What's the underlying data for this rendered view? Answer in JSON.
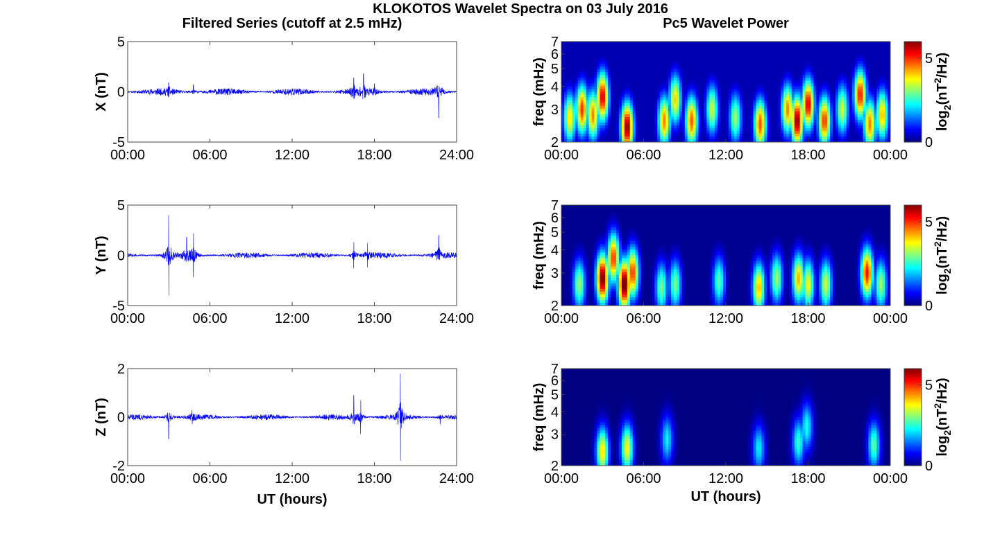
{
  "figure": {
    "title": "KLOKOTOS Wavelet Spectra on 03 July 2016",
    "left_title": "Filtered Series (cutoff at 2.5 mHz)",
    "right_title": "Pc5 Wavelet Power",
    "xlabel": "UT (hours)"
  },
  "colors": {
    "trace": "#0000ff",
    "axis": "#444444"
  },
  "chart_data": [
    {
      "id": "series-x",
      "type": "line",
      "component": "X",
      "ylabel": "X (nT)",
      "ylim": [
        -5,
        5
      ],
      "yticks": [
        "5",
        "0",
        "-5"
      ],
      "xlim": [
        0,
        24
      ],
      "xticks": [
        "00:00",
        "06:00",
        "12:00",
        "18:00",
        "24:00"
      ],
      "noise_amplitude": 0.35,
      "events": [
        {
          "t": 3.0,
          "amp": 0.9
        },
        {
          "t": 4.8,
          "amp": 0.7
        },
        {
          "t": 16.5,
          "amp": 1.4
        },
        {
          "t": 17.2,
          "amp": 1.8
        },
        {
          "t": 18.0,
          "amp": 0.8
        },
        {
          "t": 22.7,
          "amp": 2.6
        }
      ]
    },
    {
      "id": "series-y",
      "type": "line",
      "component": "Y",
      "ylabel": "Y (nT)",
      "ylim": [
        -5,
        5
      ],
      "yticks": [
        "5",
        "0",
        "-5"
      ],
      "xlim": [
        0,
        24
      ],
      "xticks": [
        "00:00",
        "06:00",
        "12:00",
        "18:00",
        "24:00"
      ],
      "noise_amplitude": 0.3,
      "events": [
        {
          "t": 3.0,
          "amp": 4.0
        },
        {
          "t": 4.3,
          "amp": 1.8
        },
        {
          "t": 4.8,
          "amp": 2.2
        },
        {
          "t": 16.5,
          "amp": 1.3
        },
        {
          "t": 17.5,
          "amp": 1.2
        },
        {
          "t": 22.7,
          "amp": 2.0
        }
      ]
    },
    {
      "id": "series-z",
      "type": "line",
      "component": "Z",
      "ylabel": "Z (nT)",
      "ylim": [
        -2,
        2
      ],
      "yticks": [
        "2",
        "0",
        "-2"
      ],
      "xlim": [
        0,
        24
      ],
      "xticks": [
        "00:00",
        "06:00",
        "12:00",
        "18:00",
        "24:00"
      ],
      "noise_amplitude": 0.12,
      "events": [
        {
          "t": 3.0,
          "amp": 0.9
        },
        {
          "t": 4.7,
          "amp": 0.3
        },
        {
          "t": 16.5,
          "amp": 0.9
        },
        {
          "t": 17.0,
          "amp": 0.7
        },
        {
          "t": 19.9,
          "amp": 1.8
        },
        {
          "t": 22.8,
          "amp": 0.3
        }
      ]
    },
    {
      "id": "power-x",
      "type": "heatmap",
      "component": "X",
      "ylabel": "freq (mHz)",
      "yscale": "log",
      "ylim": [
        2,
        7
      ],
      "yticks": [
        "7",
        "6",
        "5",
        "4",
        "3",
        "2"
      ],
      "xlim": [
        0,
        24
      ],
      "xticks": [
        "00:00",
        "06:00",
        "12:00",
        "18:00",
        "00:00"
      ],
      "colorbar": {
        "label": "log2(nT2/Hz)",
        "range": [
          0,
          6
        ],
        "ticks": [
          "5",
          "0"
        ]
      },
      "background": 0.3,
      "blobs": [
        {
          "t": 0.6,
          "f": 2.7,
          "p": 4.0
        },
        {
          "t": 1.5,
          "f": 3.0,
          "p": 5.0
        },
        {
          "t": 2.3,
          "f": 2.8,
          "p": 4.5
        },
        {
          "t": 3.0,
          "f": 3.5,
          "p": 5.5
        },
        {
          "t": 4.8,
          "f": 2.4,
          "p": 6.0
        },
        {
          "t": 7.5,
          "f": 2.6,
          "p": 4.5
        },
        {
          "t": 8.3,
          "f": 3.4,
          "p": 4.0
        },
        {
          "t": 9.5,
          "f": 2.6,
          "p": 4.8
        },
        {
          "t": 11.0,
          "f": 3.0,
          "p": 3.5
        },
        {
          "t": 12.7,
          "f": 2.7,
          "p": 3.2
        },
        {
          "t": 14.5,
          "f": 2.5,
          "p": 4.8
        },
        {
          "t": 16.5,
          "f": 3.0,
          "p": 4.5
        },
        {
          "t": 17.2,
          "f": 2.6,
          "p": 6.0
        },
        {
          "t": 18.0,
          "f": 3.2,
          "p": 5.5
        },
        {
          "t": 19.2,
          "f": 2.6,
          "p": 5.0
        },
        {
          "t": 20.5,
          "f": 3.0,
          "p": 3.5
        },
        {
          "t": 21.8,
          "f": 3.6,
          "p": 5.2
        },
        {
          "t": 22.5,
          "f": 2.5,
          "p": 4.5
        },
        {
          "t": 23.4,
          "f": 2.8,
          "p": 4.2
        }
      ]
    },
    {
      "id": "power-y",
      "type": "heatmap",
      "component": "Y",
      "ylabel": "freq (mHz)",
      "yscale": "log",
      "ylim": [
        2,
        7
      ],
      "yticks": [
        "7",
        "6",
        "5",
        "4",
        "3",
        "2"
      ],
      "xlim": [
        0,
        24
      ],
      "xticks": [
        "00:00",
        "06:00",
        "12:00",
        "18:00",
        "00:00"
      ],
      "colorbar": {
        "label": "log2(nT2/Hz)",
        "range": [
          0,
          6
        ],
        "ticks": [
          "5",
          "0"
        ]
      },
      "background": 0.1,
      "blobs": [
        {
          "t": 1.3,
          "f": 2.6,
          "p": 3.2
        },
        {
          "t": 3.0,
          "f": 2.8,
          "p": 6.2
        },
        {
          "t": 3.8,
          "f": 3.6,
          "p": 5.0
        },
        {
          "t": 4.6,
          "f": 2.6,
          "p": 6.4
        },
        {
          "t": 5.2,
          "f": 3.0,
          "p": 5.0
        },
        {
          "t": 7.3,
          "f": 2.5,
          "p": 3.0
        },
        {
          "t": 8.3,
          "f": 2.6,
          "p": 3.0
        },
        {
          "t": 11.5,
          "f": 2.7,
          "p": 2.8
        },
        {
          "t": 14.4,
          "f": 2.5,
          "p": 4.2
        },
        {
          "t": 15.7,
          "f": 2.8,
          "p": 3.2
        },
        {
          "t": 17.3,
          "f": 2.8,
          "p": 4.2
        },
        {
          "t": 18.0,
          "f": 2.6,
          "p": 3.8
        },
        {
          "t": 19.3,
          "f": 2.6,
          "p": 3.5
        },
        {
          "t": 22.3,
          "f": 3.0,
          "p": 5.2
        },
        {
          "t": 23.3,
          "f": 2.6,
          "p": 3.2
        }
      ]
    },
    {
      "id": "power-z",
      "type": "heatmap",
      "component": "Z",
      "ylabel": "freq (mHz)",
      "yscale": "log",
      "ylim": [
        2,
        7
      ],
      "yticks": [
        "7",
        "6",
        "5",
        "4",
        "3",
        "2"
      ],
      "xlim": [
        0,
        24
      ],
      "xticks": [
        "00:00",
        "06:00",
        "12:00",
        "18:00",
        "00:00"
      ],
      "colorbar": {
        "label": "log2(nT2/Hz)",
        "range": [
          0,
          6
        ],
        "ticks": [
          "5",
          "0"
        ]
      },
      "background": 0.0,
      "blobs": [
        {
          "t": 3.0,
          "f": 2.4,
          "p": 4.0
        },
        {
          "t": 4.8,
          "f": 2.5,
          "p": 3.8
        },
        {
          "t": 7.7,
          "f": 2.8,
          "p": 2.2
        },
        {
          "t": 14.4,
          "f": 2.5,
          "p": 2.2
        },
        {
          "t": 17.3,
          "f": 2.7,
          "p": 2.6
        },
        {
          "t": 17.9,
          "f": 3.3,
          "p": 2.4
        },
        {
          "t": 22.8,
          "f": 2.6,
          "p": 2.8
        }
      ]
    }
  ]
}
